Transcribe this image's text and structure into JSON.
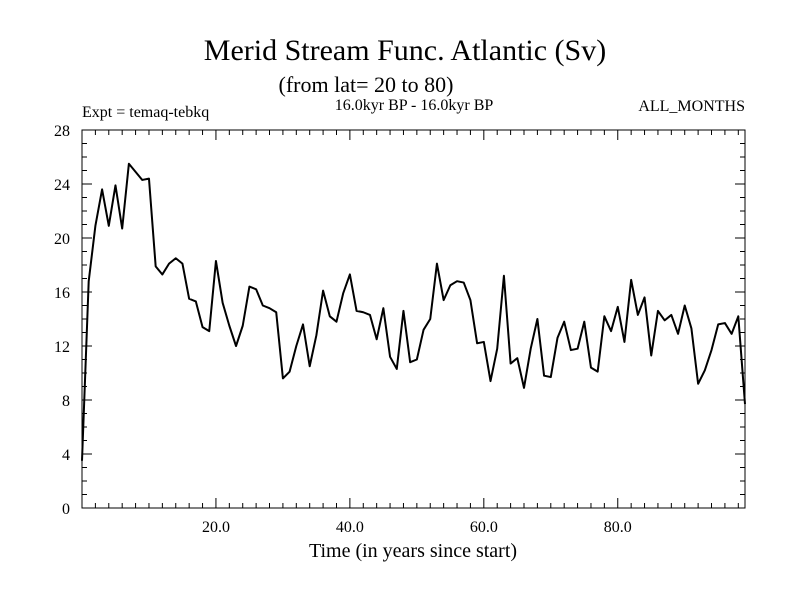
{
  "chart_data": {
    "type": "line",
    "title": "Merid Stream Func. Atlantic (Sv)",
    "subtitle": "(from lat= 20 to 80)",
    "period": "16.0kyr BP - 16.0kyr BP",
    "experiment": "Expt = temaq-tebkq",
    "months": "ALL_MONTHS",
    "xlabel": "Time (in years since start)",
    "ylabel": "",
    "xlim": [
      0,
      99
    ],
    "ylim": [
      0,
      28
    ],
    "xticks": [
      20,
      40,
      60,
      80
    ],
    "xtick_labels": [
      "20.0",
      "40.0",
      "60.0",
      "80.0"
    ],
    "yticks": [
      0,
      4,
      8,
      12,
      16,
      20,
      24,
      28
    ],
    "ytick_labels": [
      "0",
      "4",
      "8",
      "12",
      "16",
      "20",
      "24",
      "28"
    ],
    "grid": false,
    "series": [
      {
        "name": "temaq-tebkq",
        "x": [
          0,
          1,
          2,
          3,
          4,
          5,
          6,
          7,
          8,
          9,
          10,
          11,
          12,
          13,
          14,
          15,
          16,
          17,
          18,
          19,
          20,
          21,
          22,
          23,
          24,
          25,
          26,
          27,
          28,
          29,
          30,
          31,
          32,
          33,
          34,
          35,
          36,
          37,
          38,
          39,
          40,
          41,
          42,
          43,
          44,
          45,
          46,
          47,
          48,
          49,
          50,
          51,
          52,
          53,
          54,
          55,
          56,
          57,
          58,
          59,
          60,
          61,
          62,
          63,
          64,
          65,
          66,
          67,
          68,
          69,
          70,
          71,
          72,
          73,
          74,
          75,
          76,
          77,
          78,
          79,
          80,
          81,
          82,
          83,
          84,
          85,
          86,
          87,
          88,
          89,
          90,
          91,
          92,
          93,
          94,
          95,
          96,
          97,
          98,
          99
        ],
        "values": [
          3.5,
          16.8,
          20.9,
          23.6,
          20.9,
          23.9,
          20.7,
          25.5,
          24.9,
          24.3,
          24.4,
          17.9,
          17.3,
          18.1,
          18.5,
          18.1,
          15.5,
          15.3,
          13.4,
          13.1,
          18.3,
          15.2,
          13.5,
          12.0,
          13.5,
          16.4,
          16.2,
          15.0,
          14.8,
          14.5,
          9.6,
          10.1,
          12.0,
          13.6,
          10.5,
          12.8,
          16.1,
          14.2,
          13.8,
          15.9,
          17.3,
          14.6,
          14.5,
          14.3,
          12.5,
          14.8,
          11.2,
          10.3,
          14.6,
          10.8,
          11.0,
          13.2,
          14.0,
          18.1,
          15.4,
          16.5,
          16.8,
          16.7,
          15.4,
          12.2,
          12.3,
          9.4,
          11.8,
          17.2,
          10.7,
          11.1,
          8.9,
          11.8,
          14.0,
          9.8,
          9.7,
          12.6,
          13.8,
          11.7,
          11.8,
          13.8,
          10.4,
          10.1,
          14.2,
          13.1,
          14.9,
          12.3,
          16.9,
          14.3,
          15.6,
          11.3,
          14.6,
          13.9,
          14.3,
          12.9,
          15.0,
          13.3,
          9.2,
          10.2,
          11.7,
          13.6,
          13.7,
          12.9,
          14.2,
          7.7
        ]
      }
    ]
  }
}
